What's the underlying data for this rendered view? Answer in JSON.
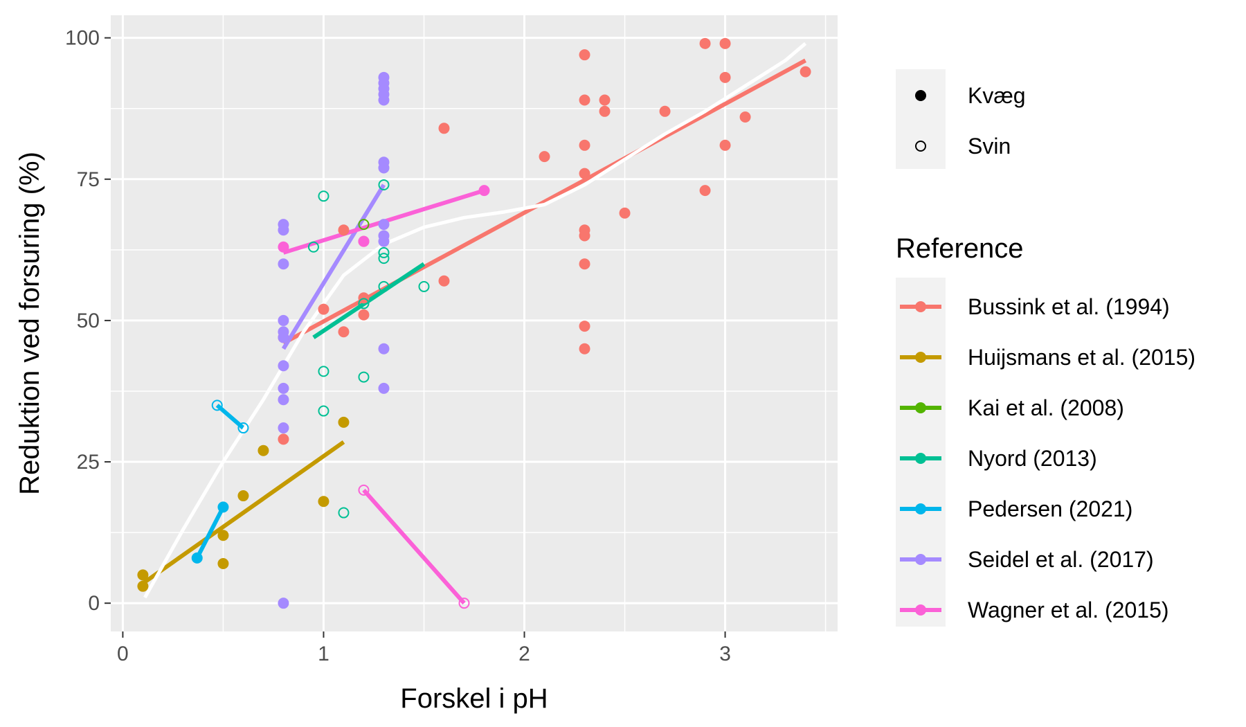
{
  "chart_data": {
    "type": "scatter",
    "title": "",
    "xlabel": "Forskel i pH",
    "ylabel": "Reduktion ved forsuring (%)",
    "xlim": [
      -0.06,
      3.56
    ],
    "ylim": [
      -5,
      104
    ],
    "x_ticks": [
      0,
      1,
      2,
      3
    ],
    "y_ticks": [
      0,
      25,
      50,
      75,
      100
    ],
    "grid": true,
    "legend_position": "right",
    "shape_legend": {
      "title": "",
      "items": [
        {
          "label": "Kvæg",
          "shape": "filled-circle"
        },
        {
          "label": "Svin",
          "shape": "open-circle"
        }
      ]
    },
    "color_legend": {
      "title": "Reference"
    },
    "series": [
      {
        "name": "Bussink et al. (1994)",
        "color": "#F8766D",
        "points": [
          {
            "x": 0.8,
            "y": 29,
            "kind": "Kvæg"
          },
          {
            "x": 0.8,
            "y": 47,
            "kind": "Kvæg"
          },
          {
            "x": 1.0,
            "y": 52,
            "kind": "Kvæg"
          },
          {
            "x": 1.1,
            "y": 48,
            "kind": "Kvæg"
          },
          {
            "x": 1.1,
            "y": 66,
            "kind": "Kvæg"
          },
          {
            "x": 1.2,
            "y": 54,
            "kind": "Kvæg"
          },
          {
            "x": 1.2,
            "y": 51,
            "kind": "Kvæg"
          },
          {
            "x": 1.2,
            "y": 64,
            "kind": "Kvæg"
          },
          {
            "x": 1.6,
            "y": 84,
            "kind": "Kvæg"
          },
          {
            "x": 1.6,
            "y": 57,
            "kind": "Kvæg"
          },
          {
            "x": 2.1,
            "y": 79,
            "kind": "Kvæg"
          },
          {
            "x": 2.3,
            "y": 97,
            "kind": "Kvæg"
          },
          {
            "x": 2.3,
            "y": 89,
            "kind": "Kvæg"
          },
          {
            "x": 2.3,
            "y": 81,
            "kind": "Kvæg"
          },
          {
            "x": 2.3,
            "y": 76,
            "kind": "Kvæg"
          },
          {
            "x": 2.3,
            "y": 66,
            "kind": "Kvæg"
          },
          {
            "x": 2.3,
            "y": 65,
            "kind": "Kvæg"
          },
          {
            "x": 2.3,
            "y": 60,
            "kind": "Kvæg"
          },
          {
            "x": 2.3,
            "y": 49,
            "kind": "Kvæg"
          },
          {
            "x": 2.3,
            "y": 45,
            "kind": "Kvæg"
          },
          {
            "x": 2.4,
            "y": 89,
            "kind": "Kvæg"
          },
          {
            "x": 2.4,
            "y": 87,
            "kind": "Kvæg"
          },
          {
            "x": 2.5,
            "y": 69,
            "kind": "Kvæg"
          },
          {
            "x": 2.7,
            "y": 87,
            "kind": "Kvæg"
          },
          {
            "x": 2.9,
            "y": 99,
            "kind": "Kvæg"
          },
          {
            "x": 2.9,
            "y": 73,
            "kind": "Kvæg"
          },
          {
            "x": 3.0,
            "y": 99,
            "kind": "Kvæg"
          },
          {
            "x": 3.0,
            "y": 93,
            "kind": "Kvæg"
          },
          {
            "x": 3.0,
            "y": 81,
            "kind": "Kvæg"
          },
          {
            "x": 3.1,
            "y": 86,
            "kind": "Kvæg"
          },
          {
            "x": 3.4,
            "y": 94,
            "kind": "Kvæg"
          }
        ],
        "fit": [
          [
            0.8,
            46
          ],
          [
            3.4,
            96
          ]
        ]
      },
      {
        "name": "Huijsmans et al. (2015)",
        "color": "#C49A00",
        "points": [
          {
            "x": 0.1,
            "y": 5,
            "kind": "Kvæg"
          },
          {
            "x": 0.1,
            "y": 3,
            "kind": "Kvæg"
          },
          {
            "x": 0.5,
            "y": 12,
            "kind": "Kvæg"
          },
          {
            "x": 0.5,
            "y": 7,
            "kind": "Kvæg"
          },
          {
            "x": 0.6,
            "y": 19,
            "kind": "Kvæg"
          },
          {
            "x": 0.7,
            "y": 27,
            "kind": "Kvæg"
          },
          {
            "x": 1.0,
            "y": 18,
            "kind": "Kvæg"
          },
          {
            "x": 1.1,
            "y": 32,
            "kind": "Kvæg"
          }
        ],
        "fit": [
          [
            0.1,
            3.5
          ],
          [
            1.1,
            28.5
          ]
        ]
      },
      {
        "name": "Kai et al. (2008)",
        "color": "#53B400",
        "points": [
          {
            "x": 1.2,
            "y": 67,
            "kind": "Svin"
          }
        ],
        "fit": []
      },
      {
        "name": "Nyord (2013)",
        "color": "#00C094",
        "points": [
          {
            "x": 0.95,
            "y": 63,
            "kind": "Svin"
          },
          {
            "x": 1.0,
            "y": 72,
            "kind": "Svin"
          },
          {
            "x": 1.0,
            "y": 41,
            "kind": "Svin"
          },
          {
            "x": 1.0,
            "y": 34,
            "kind": "Svin"
          },
          {
            "x": 1.1,
            "y": 16,
            "kind": "Svin"
          },
          {
            "x": 1.2,
            "y": 40,
            "kind": "Svin"
          },
          {
            "x": 1.2,
            "y": 53,
            "kind": "Svin"
          },
          {
            "x": 1.3,
            "y": 74,
            "kind": "Svin"
          },
          {
            "x": 1.3,
            "y": 62,
            "kind": "Svin"
          },
          {
            "x": 1.3,
            "y": 61,
            "kind": "Svin"
          },
          {
            "x": 1.3,
            "y": 56,
            "kind": "Svin"
          },
          {
            "x": 1.5,
            "y": 56,
            "kind": "Svin"
          }
        ],
        "fit": [
          [
            0.95,
            47
          ],
          [
            1.5,
            60
          ]
        ]
      },
      {
        "name": "Pedersen (2021)",
        "color": "#00B6EB",
        "points": [
          {
            "x": 0.47,
            "y": 35,
            "kind": "Svin"
          },
          {
            "x": 0.6,
            "y": 31,
            "kind": "Svin"
          },
          {
            "x": 0.37,
            "y": 8,
            "kind": "Kvæg"
          },
          {
            "x": 0.5,
            "y": 17,
            "kind": "Kvæg"
          }
        ],
        "fit": [
          [
            0.47,
            35
          ],
          [
            0.6,
            31
          ]
        ],
        "fit2": [
          [
            0.37,
            8
          ],
          [
            0.5,
            17
          ]
        ]
      },
      {
        "name": "Seidel et al. (2017)",
        "color": "#A58AFF",
        "points": [
          {
            "x": 0.8,
            "y": 67,
            "kind": "Kvæg"
          },
          {
            "x": 0.8,
            "y": 66,
            "kind": "Kvæg"
          },
          {
            "x": 0.8,
            "y": 60,
            "kind": "Kvæg"
          },
          {
            "x": 0.8,
            "y": 50,
            "kind": "Kvæg"
          },
          {
            "x": 0.8,
            "y": 48,
            "kind": "Kvæg"
          },
          {
            "x": 0.8,
            "y": 47,
            "kind": "Kvæg"
          },
          {
            "x": 0.8,
            "y": 42,
            "kind": "Kvæg"
          },
          {
            "x": 0.8,
            "y": 38,
            "kind": "Kvæg"
          },
          {
            "x": 0.8,
            "y": 36,
            "kind": "Kvæg"
          },
          {
            "x": 0.8,
            "y": 31,
            "kind": "Kvæg"
          },
          {
            "x": 0.8,
            "y": 0,
            "kind": "Kvæg"
          },
          {
            "x": 1.3,
            "y": 93,
            "kind": "Kvæg"
          },
          {
            "x": 1.3,
            "y": 92,
            "kind": "Kvæg"
          },
          {
            "x": 1.3,
            "y": 91,
            "kind": "Kvæg"
          },
          {
            "x": 1.3,
            "y": 90,
            "kind": "Kvæg"
          },
          {
            "x": 1.3,
            "y": 89,
            "kind": "Kvæg"
          },
          {
            "x": 1.3,
            "y": 78,
            "kind": "Kvæg"
          },
          {
            "x": 1.3,
            "y": 77,
            "kind": "Kvæg"
          },
          {
            "x": 1.3,
            "y": 67,
            "kind": "Kvæg"
          },
          {
            "x": 1.3,
            "y": 65,
            "kind": "Kvæg"
          },
          {
            "x": 1.3,
            "y": 64,
            "kind": "Kvæg"
          },
          {
            "x": 1.3,
            "y": 45,
            "kind": "Kvæg"
          },
          {
            "x": 1.3,
            "y": 38,
            "kind": "Kvæg"
          }
        ],
        "fit": [
          [
            0.8,
            45
          ],
          [
            1.3,
            74
          ]
        ]
      },
      {
        "name": "Wagner et al. (2015)",
        "color": "#FB61D7",
        "points": [
          {
            "x": 0.8,
            "y": 63,
            "kind": "Kvæg"
          },
          {
            "x": 1.2,
            "y": 64,
            "kind": "Kvæg"
          },
          {
            "x": 1.8,
            "y": 73,
            "kind": "Kvæg"
          },
          {
            "x": 1.2,
            "y": 20,
            "kind": "Svin"
          },
          {
            "x": 1.7,
            "y": 0,
            "kind": "Svin"
          }
        ],
        "fit": [
          [
            0.8,
            62
          ],
          [
            1.8,
            73
          ]
        ],
        "fit2": [
          [
            1.2,
            20
          ],
          [
            1.7,
            0
          ]
        ]
      }
    ],
    "overall_smooth": {
      "color": "#FFFFFF",
      "points": [
        [
          0.11,
          1
        ],
        [
          0.3,
          13
        ],
        [
          0.5,
          25
        ],
        [
          0.7,
          36
        ],
        [
          0.9,
          48
        ],
        [
          1.1,
          58
        ],
        [
          1.3,
          63.5
        ],
        [
          1.5,
          66.5
        ],
        [
          1.7,
          68.2
        ],
        [
          1.9,
          69.2
        ],
        [
          2.1,
          70.5
        ],
        [
          2.3,
          74
        ],
        [
          2.5,
          78.5
        ],
        [
          2.7,
          83
        ],
        [
          2.9,
          87
        ],
        [
          3.1,
          91.5
        ],
        [
          3.3,
          96
        ],
        [
          3.4,
          99
        ]
      ]
    }
  }
}
